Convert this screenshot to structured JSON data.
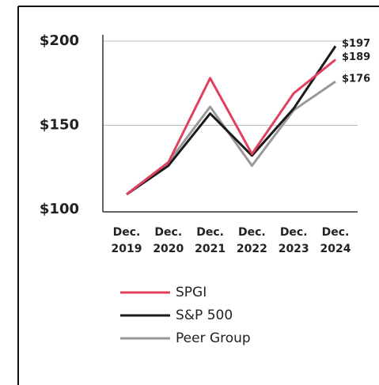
{
  "chart_data": {
    "type": "line",
    "categories": [
      "Dec. 2019",
      "Dec. 2020",
      "Dec. 2021",
      "Dec. 2022",
      "Dec. 2023",
      "Dec. 2024"
    ],
    "series": [
      {
        "name": "SPGI",
        "color": "#e0405e",
        "values": [
          109,
          128,
          178,
          133,
          169,
          189
        ],
        "value_labels": [
          null,
          null,
          null,
          null,
          null,
          "$189"
        ]
      },
      {
        "name": "S&P 500",
        "color": "#1a1a1a",
        "values": [
          109,
          126,
          157,
          132,
          160,
          197
        ],
        "value_labels": [
          null,
          null,
          null,
          null,
          null,
          "$197"
        ]
      },
      {
        "name": "Peer Group",
        "color": "#999999",
        "values": [
          109,
          128,
          161,
          126,
          159,
          176
        ],
        "value_labels": [
          null,
          null,
          null,
          null,
          null,
          "$176"
        ]
      }
    ],
    "ylim": [
      100,
      200
    ],
    "yticks": [
      {
        "value": 100,
        "label": "$100"
      },
      {
        "value": 150,
        "label": "$150"
      },
      {
        "value": 200,
        "label": "$200"
      }
    ],
    "grid": true
  }
}
